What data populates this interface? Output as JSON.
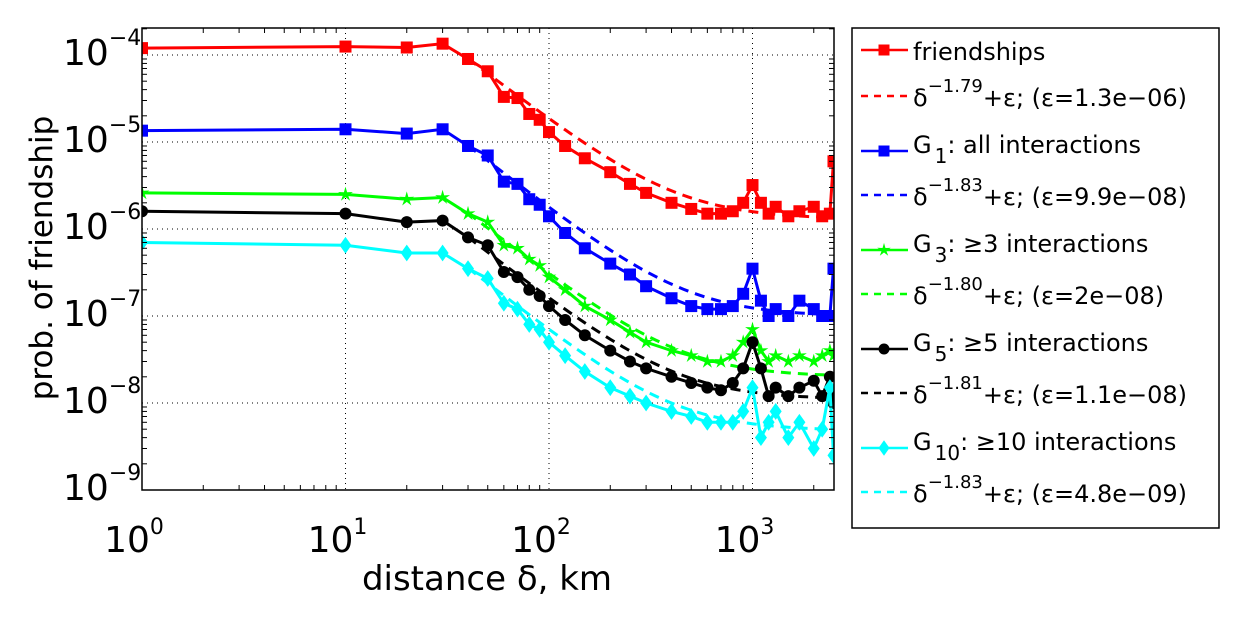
{
  "chart_data": {
    "type": "line",
    "xscale": "log",
    "yscale": "log",
    "xlabel": "distance δ, km",
    "ylabel": "prob. of friendship",
    "xlim": [
      1,
      2500
    ],
    "ylim": [
      1e-09,
      0.0002
    ],
    "grid": true,
    "legend_position": "outside-right",
    "x_ticks": [
      {
        "base": "10",
        "exp": "0",
        "value": 1
      },
      {
        "base": "10",
        "exp": "1",
        "value": 10
      },
      {
        "base": "10",
        "exp": "2",
        "value": 100
      },
      {
        "base": "10",
        "exp": "3",
        "value": 1000
      }
    ],
    "y_ticks": [
      {
        "base": "10",
        "exp": "−4",
        "value": 0.0001
      },
      {
        "base": "10",
        "exp": "−5",
        "value": 1e-05
      },
      {
        "base": "10",
        "exp": "−6",
        "value": 1e-06
      },
      {
        "base": "10",
        "exp": "−7",
        "value": 1e-07
      },
      {
        "base": "10",
        "exp": "−8",
        "value": 1e-08
      },
      {
        "base": "10",
        "exp": "−9",
        "value": 1e-09
      }
    ],
    "x": [
      1,
      10,
      20,
      30,
      40,
      50,
      60,
      70,
      80,
      90,
      100,
      120,
      150,
      200,
      250,
      300,
      400,
      500,
      600,
      700,
      800,
      900,
      1000,
      1100,
      1200,
      1300,
      1500,
      1700,
      2000,
      2200,
      2400,
      2500
    ],
    "series": [
      {
        "name": "friendships",
        "color": "#ff0000",
        "marker": "square",
        "values": [
          0.00012,
          0.000125,
          0.000122,
          0.000135,
          9e-05,
          6.5e-05,
          3.3e-05,
          3.2e-05,
          2.1e-05,
          1.8e-05,
          1.3e-05,
          9e-06,
          6.5e-06,
          4.5e-06,
          3.3e-06,
          2.6e-06,
          2e-06,
          1.7e-06,
          1.5e-06,
          1.5e-06,
          1.6e-06,
          2e-06,
          3.2e-06,
          2e-06,
          1.5e-06,
          1.8e-06,
          1.4e-06,
          1.6e-06,
          1.8e-06,
          1.4e-06,
          1.5e-06,
          6e-06
        ]
      },
      {
        "name": "G1: all interactions",
        "color": "#0000ff",
        "marker": "square",
        "values": [
          1.35e-05,
          1.4e-05,
          1.25e-05,
          1.4e-05,
          9e-06,
          7e-06,
          3.5e-06,
          3.3e-06,
          2.2e-06,
          1.9e-06,
          1.4e-06,
          9e-07,
          6e-07,
          4e-07,
          3e-07,
          2.2e-07,
          1.6e-07,
          1.3e-07,
          1.2e-07,
          1.2e-07,
          1.3e-07,
          1.8e-07,
          3.5e-07,
          1.5e-07,
          1e-07,
          1.2e-07,
          1e-07,
          1.5e-07,
          1.2e-07,
          1e-07,
          1e-07,
          3.5e-07
        ]
      },
      {
        "name": "G3: ≥3 interactions",
        "color": "#00ff00",
        "marker": "star",
        "values": [
          2.6e-06,
          2.5e-06,
          2.2e-06,
          2.3e-06,
          1.5e-06,
          1.2e-06,
          6.5e-07,
          6e-07,
          4.5e-07,
          3.8e-07,
          2.8e-07,
          2e-07,
          1.3e-07,
          9e-08,
          6.5e-08,
          5e-08,
          4e-08,
          3.5e-08,
          3e-08,
          3e-08,
          3.5e-08,
          5e-08,
          7e-08,
          4e-08,
          3e-08,
          3.5e-08,
          3e-08,
          3.5e-08,
          3e-08,
          3.5e-08,
          4e-08,
          3.5e-08
        ]
      },
      {
        "name": "G5: ≥5 interactions",
        "color": "#000000",
        "marker": "circle",
        "values": [
          1.6e-06,
          1.5e-06,
          1.2e-06,
          1.25e-06,
          8e-07,
          6.5e-07,
          3.2e-07,
          2.8e-07,
          2e-07,
          1.7e-07,
          1.3e-07,
          9e-08,
          6e-08,
          4e-08,
          3e-08,
          2.5e-08,
          2e-08,
          1.7e-08,
          1.5e-08,
          1.4e-08,
          1.7e-08,
          2.5e-08,
          5e-08,
          2.5e-08,
          1.2e-08,
          1.5e-08,
          1.2e-08,
          1.5e-08,
          1.8e-08,
          1.2e-08,
          2e-08,
          1e-08
        ]
      },
      {
        "name": "G10: ≥10 interactions",
        "color": "#00ffff",
        "marker": "diamond",
        "values": [
          7e-07,
          6.5e-07,
          5.3e-07,
          5.3e-07,
          3.5e-07,
          2.7e-07,
          1.4e-07,
          1.2e-07,
          8e-08,
          7e-08,
          5e-08,
          3.5e-08,
          2.3e-08,
          1.5e-08,
          1.2e-08,
          1e-08,
          8e-09,
          7e-09,
          6e-09,
          6e-09,
          6e-09,
          8e-09,
          1.5e-08,
          4e-09,
          6e-09,
          8e-09,
          4e-09,
          6e-09,
          3e-09,
          5e-09,
          1.5e-08,
          2.5e-09
        ]
      }
    ],
    "fits": [
      {
        "name": "δ^-1.79+ε",
        "color": "#ff0000",
        "exponent": -1.79,
        "coef": 0.066,
        "epsilon": 1.3e-06,
        "x_start": 40
      },
      {
        "name": "δ^-1.83+ε",
        "color": "#0000ff",
        "exponent": -1.83,
        "coef": 0.0077,
        "epsilon": 9.9e-08,
        "x_start": 40
      },
      {
        "name": "δ^-1.80+ε",
        "color": "#00ff00",
        "exponent": -1.8,
        "coef": 0.00115,
        "epsilon": 2e-08,
        "x_start": 40
      },
      {
        "name": "δ^-1.81+ε",
        "color": "#000000",
        "exponent": -1.81,
        "coef": 0.00063,
        "epsilon": 1.1e-08,
        "x_start": 40
      },
      {
        "name": "δ^-1.83+ε",
        "color": "#00ffff",
        "exponent": -1.83,
        "coef": 0.0003,
        "epsilon": 4.8e-09,
        "x_start": 40
      }
    ],
    "legend": [
      {
        "kind": "series",
        "color": "#ff0000",
        "marker": "square",
        "main": "friendships",
        "sub": "",
        "rest": ""
      },
      {
        "kind": "fit",
        "color": "#ff0000",
        "main": "δ",
        "sup": "−1.79",
        "rest": "+ε; (ε=1.3e−06)"
      },
      {
        "kind": "series",
        "color": "#0000ff",
        "marker": "square",
        "main": "G",
        "sub": "1",
        "rest": ": all interactions"
      },
      {
        "kind": "fit",
        "color": "#0000ff",
        "main": "δ",
        "sup": "−1.83",
        "rest": "+ε; (ε=9.9e−08)"
      },
      {
        "kind": "series",
        "color": "#00ff00",
        "marker": "star",
        "main": "G",
        "sub": "3",
        "rest": ": ≥3 interactions"
      },
      {
        "kind": "fit",
        "color": "#00ff00",
        "main": "δ",
        "sup": "−1.80",
        "rest": "+ε; (ε=2e−08)"
      },
      {
        "kind": "series",
        "color": "#000000",
        "marker": "circle",
        "main": "G",
        "sub": "5",
        "rest": ": ≥5 interactions"
      },
      {
        "kind": "fit",
        "color": "#000000",
        "main": "δ",
        "sup": "−1.81",
        "rest": "+ε; (ε=1.1e−08)"
      },
      {
        "kind": "series",
        "color": "#00ffff",
        "marker": "diamond",
        "main": "G",
        "sub": "10",
        "rest": ": ≥10 interactions"
      },
      {
        "kind": "fit",
        "color": "#00ffff",
        "main": "δ",
        "sup": "−1.83",
        "rest": "+ε; (ε=4.8e−09)"
      }
    ]
  }
}
